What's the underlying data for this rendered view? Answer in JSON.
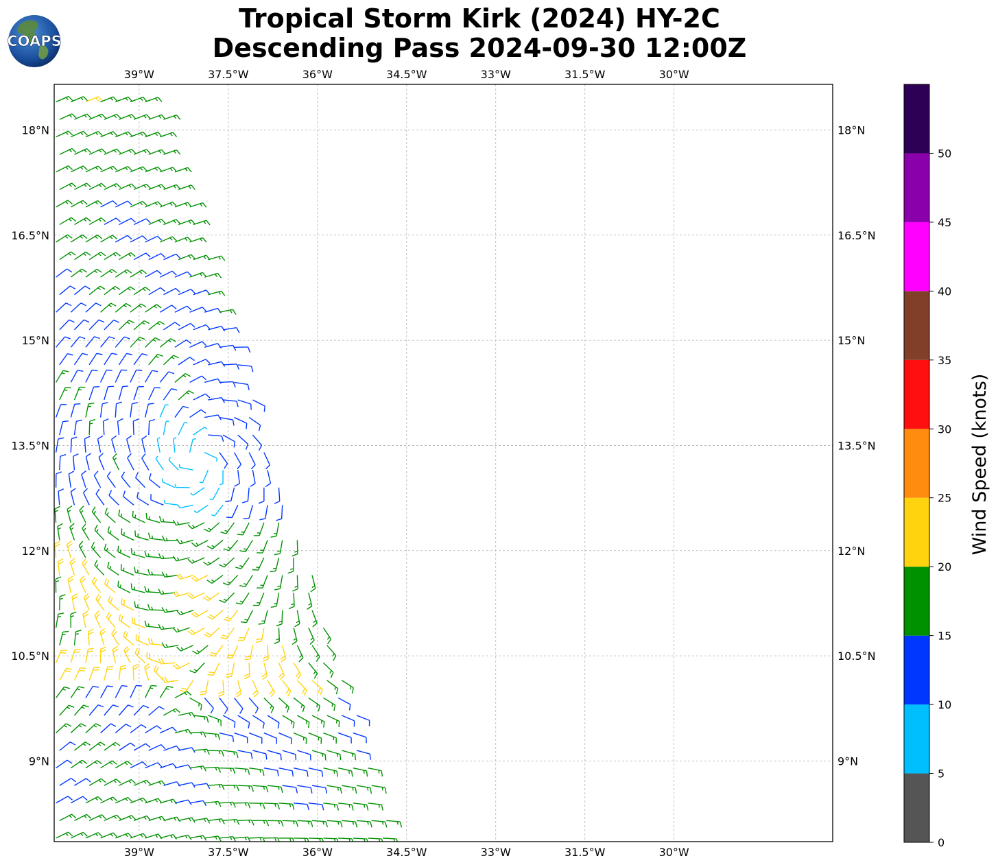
{
  "logo": {
    "text": "COAPS"
  },
  "chart_data": {
    "type": "wind-barb map",
    "title": "Tropical Storm Kirk (2024) HY-2C",
    "subtitle": "Descending Pass 2024-09-30 12:00Z",
    "x_axis": {
      "range": [
        -40.43,
        -27.33
      ],
      "ticks": [
        -39,
        -37.5,
        -36,
        -34.5,
        -33,
        -31.5,
        -30
      ],
      "tick_labels": [
        "39°W",
        "37.5°W",
        "36°W",
        "34.5°W",
        "33°W",
        "31.5°W",
        "30°W"
      ]
    },
    "y_axis": {
      "range": [
        7.85,
        18.65
      ],
      "ticks": [
        9,
        10.5,
        12,
        13.5,
        15,
        16.5,
        18
      ],
      "tick_labels": [
        "9°N",
        "10.5°N",
        "12°N",
        "13.5°N",
        "15°N",
        "16.5°N",
        "18°N"
      ]
    },
    "grid": true,
    "colorbar": {
      "label": "Wind Speed (knots)",
      "bins": [
        0,
        5,
        10,
        15,
        20,
        25,
        30,
        35,
        40,
        45,
        50,
        55
      ],
      "tick_labels": [
        "0",
        "5",
        "10",
        "15",
        "20",
        "25",
        "30",
        "35",
        "40",
        "45",
        "50"
      ],
      "colors": [
        "#555555",
        "#00bfff",
        "#0037ff",
        "#009100",
        "#ffd40f",
        "#ff8c0f",
        "#ff0f0f",
        "#823f28",
        "#ff00ff",
        "#8a00aa",
        "#2d0055"
      ]
    },
    "swath": {
      "corners": [
        [
          -40.43,
          18.62
        ],
        [
          -38.8,
          18.62
        ],
        [
          -34.7,
          7.85
        ],
        [
          -40.43,
          7.85
        ]
      ]
    },
    "storm_center": {
      "lon": -38.0,
      "lat": 13.3
    }
  }
}
